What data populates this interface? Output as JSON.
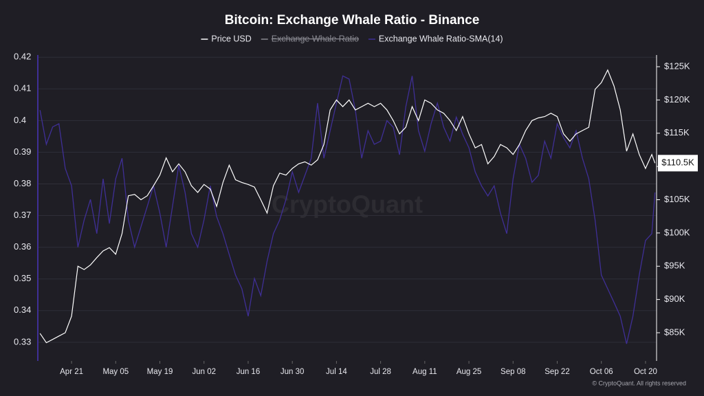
{
  "chart_data": {
    "type": "line",
    "title": "Bitcoin: Exchange Whale Ratio - Binance",
    "watermark": "CryptoQuant",
    "footer": "© CryptoQuant. All rights reserved",
    "x": [
      -10,
      -8,
      -6,
      -4,
      -2,
      0,
      2,
      4,
      6,
      8,
      10,
      12,
      14,
      16,
      18,
      20,
      22,
      24,
      26,
      28,
      30,
      32,
      34,
      36,
      38,
      40,
      42,
      44,
      46,
      48,
      50,
      52,
      54,
      56,
      58,
      60,
      62,
      64,
      66,
      68,
      70,
      72,
      74,
      76,
      78,
      80,
      82,
      84,
      86,
      88,
      90,
      92,
      94,
      96,
      98,
      100,
      102,
      104,
      106,
      108,
      110,
      112,
      114,
      116,
      118,
      120,
      122,
      124,
      126,
      128,
      130,
      132,
      134,
      136,
      138,
      140,
      142,
      144,
      146,
      148,
      150,
      152,
      154,
      156,
      158,
      160,
      162,
      164,
      166,
      168,
      170,
      172,
      174,
      176,
      178,
      180,
      182,
      184,
      185
    ],
    "xlim": [
      -10.7,
      185.5
    ],
    "xticks": [
      {
        "value": 0,
        "label": "Apr 21"
      },
      {
        "value": 14,
        "label": "May 05"
      },
      {
        "value": 28,
        "label": "May 19"
      },
      {
        "value": 42,
        "label": "Jun 02"
      },
      {
        "value": 56,
        "label": "Jun 16"
      },
      {
        "value": 70,
        "label": "Jun 30"
      },
      {
        "value": 84,
        "label": "Jul 14"
      },
      {
        "value": 98,
        "label": "Jul 28"
      },
      {
        "value": 112,
        "label": "Aug 11"
      },
      {
        "value": 126,
        "label": "Aug 25"
      },
      {
        "value": 140,
        "label": "Sep 08"
      },
      {
        "value": 154,
        "label": "Sep 22"
      },
      {
        "value": 168,
        "label": "Oct 06"
      },
      {
        "value": 182,
        "label": "Oct 20"
      }
    ],
    "ylim": [
      0.3241,
      0.4207
    ],
    "yticks": [
      0.33,
      0.34,
      0.35,
      0.36,
      0.37,
      0.38,
      0.39,
      0.4,
      0.41,
      0.42
    ],
    "y2lim": [
      80.76,
      126.76
    ],
    "y2ticks": [
      {
        "value": 85,
        "label": "$85K"
      },
      {
        "value": 90,
        "label": "$90K"
      },
      {
        "value": 95,
        "label": "$95K"
      },
      {
        "value": 100,
        "label": "$100K"
      },
      {
        "value": 105,
        "label": "$105K"
      },
      {
        "value": 110,
        "label": "$110K"
      },
      {
        "value": 115,
        "label": "$115K"
      },
      {
        "value": 120,
        "label": "$120K"
      },
      {
        "value": 125,
        "label": "$125K"
      }
    ],
    "grid": true,
    "current_price": {
      "value": 110.5,
      "label": "$110.5K"
    },
    "series": [
      {
        "name": "Price USD",
        "color": "#ffffff",
        "axis": "y2",
        "values": [
          84.9,
          83.5,
          84,
          84.5,
          85,
          87.5,
          95,
          94.5,
          95.2,
          96.3,
          97.3,
          97.8,
          96.8,
          99.9,
          105.6,
          105.8,
          105,
          105.6,
          107.1,
          108.7,
          111.3,
          109.2,
          110.4,
          109.2,
          107.1,
          106.1,
          107.3,
          106.6,
          104,
          107.6,
          110.2,
          108,
          107.6,
          107.3,
          106.9,
          105,
          103,
          107.1,
          109,
          108.7,
          109.7,
          110.4,
          110.7,
          110.2,
          111,
          113.3,
          118.5,
          120,
          119,
          120,
          118.5,
          119,
          119.5,
          119,
          119.5,
          118.5,
          116.9,
          114.9,
          115.9,
          119,
          116.9,
          120,
          119.5,
          118.5,
          118,
          116.9,
          115.4,
          117.5,
          114.9,
          112.8,
          113.3,
          110.4,
          111.5,
          113.3,
          112.8,
          111.8,
          113.3,
          115.4,
          116.9,
          117.3,
          117.5,
          118,
          117.5,
          114.9,
          113.8,
          114.9,
          115.4,
          115.9,
          121.6,
          122.6,
          124.5,
          122.1,
          118.5,
          112.3,
          114.9,
          111.8,
          109.7,
          111.8,
          110.5
        ]
      },
      {
        "name": "Exchange Whale Ratio",
        "color": "#8a8a92",
        "visible": false
      },
      {
        "name": "Exchange Whale Ratio-SMA(14)",
        "color": "#3f2f96",
        "values": [
          0.4033,
          0.3925,
          0.398,
          0.399,
          0.3849,
          0.3794,
          0.36,
          0.3686,
          0.3751,
          0.3643,
          0.3816,
          0.3675,
          0.3816,
          0.3881,
          0.3686,
          0.36,
          0.3664,
          0.3729,
          0.3794,
          0.3708,
          0.36,
          0.3729,
          0.3859,
          0.3773,
          0.3643,
          0.36,
          0.3686,
          0.3794,
          0.3697,
          0.3643,
          0.3577,
          0.3512,
          0.3469,
          0.3382,
          0.3501,
          0.3447,
          0.3556,
          0.3643,
          0.3686,
          0.3751,
          0.3838,
          0.3773,
          0.3827,
          0.3881,
          0.4055,
          0.3881,
          0.3968,
          0.4055,
          0.4141,
          0.4131,
          0.4033,
          0.3881,
          0.3968,
          0.3925,
          0.3935,
          0.4,
          0.3979,
          0.3892,
          0.4044,
          0.4141,
          0.3968,
          0.3903,
          0.399,
          0.4055,
          0.3979,
          0.3935,
          0.4011,
          0.3957,
          0.3914,
          0.3838,
          0.3794,
          0.3762,
          0.3794,
          0.3708,
          0.3643,
          0.3816,
          0.3925,
          0.3881,
          0.3805,
          0.3827,
          0.3935,
          0.3881,
          0.399,
          0.3946,
          0.3914,
          0.3968,
          0.3881,
          0.3816,
          0.3686,
          0.3512,
          0.3469,
          0.3426,
          0.3382,
          0.3295,
          0.3382,
          0.3512,
          0.3621,
          0.3643,
          0.3773
        ]
      }
    ]
  }
}
